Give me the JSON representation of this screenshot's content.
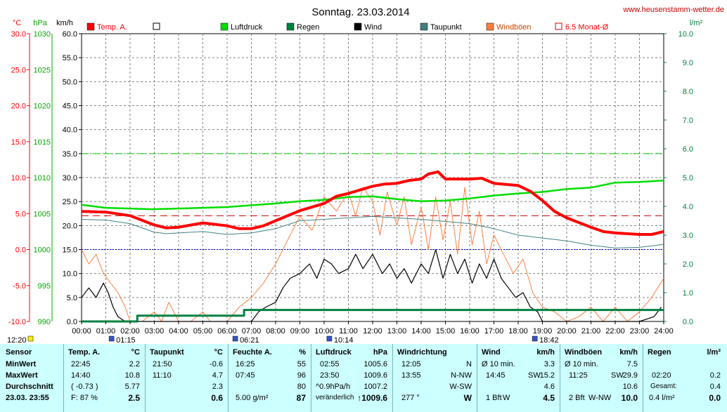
{
  "header": {
    "title": "Sonntag. 23.03.2014",
    "site": "www.heusenstamm-wetter.de",
    "unit_c": "°C",
    "unit_hpa": "hPa",
    "unit_kmh": "km/h",
    "unit_lm2": "l/m²"
  },
  "legend": [
    {
      "label": "Temp. A.",
      "color": "#ff0000",
      "style": "filled"
    },
    {
      "label": "",
      "color": "#000000",
      "style": "outline"
    },
    {
      "label": "Luftdruck",
      "color": "#00dd00",
      "style": "filled"
    },
    {
      "label": "Regen",
      "color": "#008040",
      "style": "filled"
    },
    {
      "label": "Wind",
      "color": "#000000",
      "style": "filled"
    },
    {
      "label": "Taupunkt",
      "color": "#408080",
      "style": "filled"
    },
    {
      "label": "Windböen",
      "color": "#ff8040",
      "style": "filled"
    },
    {
      "label": "6.5 Monat-Ø",
      "color": "#cc0000",
      "style": "outline"
    }
  ],
  "time_markers": [
    {
      "label": "12:20",
      "time": 0.33
    },
    {
      "label": "01:15",
      "time": 1.25
    },
    {
      "label": "06:21",
      "time": 6.35
    },
    {
      "label": "10:14",
      "time": 10.23
    },
    {
      "label": "18:42",
      "time": 18.7
    }
  ],
  "chart_data": {
    "type": "line",
    "x_unit": "hour",
    "xlim": [
      0,
      24
    ],
    "x_ticks": [
      "00:00",
      "01:00",
      "02:00",
      "03:00",
      "04:00",
      "05:00",
      "06:00",
      "07:00",
      "08:00",
      "09:00",
      "10:00",
      "11:00",
      "12:00",
      "13:00",
      "14:00",
      "15:00",
      "16:00",
      "17:00",
      "18:00",
      "19:00",
      "20:00",
      "21:00",
      "22:00",
      "23:00",
      "24:00"
    ],
    "axes": {
      "temp": {
        "unit": "°C",
        "min": -10,
        "max": 30,
        "ticks": [
          "30.0",
          "25.0",
          "20.0",
          "15.0",
          "10.0",
          "5.0",
          "0.0",
          "-5.0",
          "-10.0"
        ]
      },
      "pressure": {
        "unit": "hPa",
        "min": 990,
        "max": 1030,
        "ticks": [
          "1030",
          "1025",
          "1020",
          "1015",
          "1010",
          "1005",
          "1000",
          "995",
          "990"
        ]
      },
      "wind": {
        "unit": "km/h",
        "min": 0,
        "max": 60,
        "ticks": [
          "60.0",
          "55.0",
          "50.0",
          "45.0",
          "40.0",
          "35.0",
          "30.0",
          "25.0",
          "20.0",
          "15.0",
          "10.0",
          "5.0",
          "0.0"
        ]
      },
      "rain": {
        "unit": "l/m²",
        "min": 0,
        "max": 10,
        "ticks": [
          "10.0",
          "9.0",
          "8.0",
          "7.0",
          "6.0",
          "5.0",
          "4.0",
          "3.0",
          "2.0",
          "1.0",
          "0.0"
        ]
      }
    },
    "reference_lines": {
      "temp_6_5_month_avg": 4.7,
      "temp_zero": 0.0,
      "wind_green_dash": 35.0
    },
    "series": [
      {
        "name": "Temp. A.",
        "axis": "temp",
        "color": "#ff0000",
        "points": [
          [
            0,
            5.3
          ],
          [
            1,
            5.2
          ],
          [
            2,
            4.7
          ],
          [
            3,
            3.4
          ],
          [
            3.5,
            3.0
          ],
          [
            4,
            3.1
          ],
          [
            5,
            3.7
          ],
          [
            6,
            3.3
          ],
          [
            6.5,
            2.9
          ],
          [
            7,
            2.9
          ],
          [
            7.5,
            3.3
          ],
          [
            8,
            4.0
          ],
          [
            9,
            5.4
          ],
          [
            10,
            6.4
          ],
          [
            10.5,
            7.4
          ],
          [
            11,
            7.8
          ],
          [
            11.5,
            8.3
          ],
          [
            12,
            8.8
          ],
          [
            12.5,
            9.1
          ],
          [
            13,
            9.2
          ],
          [
            13.5,
            9.6
          ],
          [
            14,
            9.8
          ],
          [
            14.3,
            10.5
          ],
          [
            14.7,
            10.8
          ],
          [
            15,
            9.8
          ],
          [
            16,
            9.8
          ],
          [
            16.5,
            9.9
          ],
          [
            17,
            9.2
          ],
          [
            18,
            8.9
          ],
          [
            18.5,
            8.1
          ],
          [
            19,
            6.8
          ],
          [
            19.5,
            5.3
          ],
          [
            20,
            4.4
          ],
          [
            21,
            3.1
          ],
          [
            21.5,
            2.5
          ],
          [
            22,
            2.3
          ],
          [
            23,
            2.1
          ],
          [
            23.5,
            2.1
          ],
          [
            24,
            2.5
          ]
        ]
      },
      {
        "name": "Taupunkt",
        "axis": "temp",
        "color": "#408080",
        "points": [
          [
            0,
            4.2
          ],
          [
            1,
            4.1
          ],
          [
            2,
            3.6
          ],
          [
            3,
            2.4
          ],
          [
            3.5,
            2.2
          ],
          [
            4,
            2.3
          ],
          [
            5,
            2.5
          ],
          [
            6,
            2.1
          ],
          [
            6.5,
            2.2
          ],
          [
            7,
            2.3
          ],
          [
            8,
            2.9
          ],
          [
            9,
            4.0
          ],
          [
            10,
            4.2
          ],
          [
            11,
            4.4
          ],
          [
            12,
            4.6
          ],
          [
            13,
            4.4
          ],
          [
            14,
            4.2
          ],
          [
            15,
            3.9
          ],
          [
            16,
            3.6
          ],
          [
            17,
            2.9
          ],
          [
            18,
            2.0
          ],
          [
            19,
            1.6
          ],
          [
            20,
            1.2
          ],
          [
            21,
            0.6
          ],
          [
            22,
            0.2
          ],
          [
            23,
            0.3
          ],
          [
            24,
            0.7
          ]
        ]
      },
      {
        "name": "Luftdruck",
        "axis": "pressure",
        "color": "#00dd00",
        "points": [
          [
            0,
            1006.2
          ],
          [
            1,
            1005.8
          ],
          [
            2,
            1005.7
          ],
          [
            2.9,
            1005.6
          ],
          [
            4,
            1005.7
          ],
          [
            6,
            1005.9
          ],
          [
            8,
            1006.4
          ],
          [
            9,
            1006.7
          ],
          [
            10,
            1006.9
          ],
          [
            11,
            1007.3
          ],
          [
            12,
            1007.4
          ],
          [
            13,
            1007.0
          ],
          [
            14,
            1006.7
          ],
          [
            15,
            1006.8
          ],
          [
            16,
            1007.1
          ],
          [
            17,
            1007.5
          ],
          [
            18,
            1007.8
          ],
          [
            19,
            1008.0
          ],
          [
            20,
            1008.4
          ],
          [
            21,
            1008.6
          ],
          [
            22,
            1009.3
          ],
          [
            23,
            1009.4
          ],
          [
            24,
            1009.6
          ]
        ]
      },
      {
        "name": "Wind",
        "axis": "wind",
        "color": "#000000",
        "points": [
          [
            0,
            5
          ],
          [
            0.3,
            7
          ],
          [
            0.6,
            5
          ],
          [
            0.9,
            8
          ],
          [
            1.1,
            6
          ],
          [
            1.3,
            3
          ],
          [
            1.5,
            1
          ],
          [
            1.8,
            0
          ],
          [
            2,
            0
          ],
          [
            3,
            0
          ],
          [
            4,
            0
          ],
          [
            5,
            0
          ],
          [
            6,
            0
          ],
          [
            7,
            0
          ],
          [
            7.3,
            2
          ],
          [
            7.6,
            3
          ],
          [
            8,
            4
          ],
          [
            8.3,
            7
          ],
          [
            8.6,
            9
          ],
          [
            9,
            10
          ],
          [
            9.4,
            12
          ],
          [
            9.7,
            9
          ],
          [
            10,
            13
          ],
          [
            10.3,
            12
          ],
          [
            10.6,
            10
          ],
          [
            11,
            11
          ],
          [
            11.3,
            14
          ],
          [
            11.6,
            11
          ],
          [
            12,
            14
          ],
          [
            12.4,
            10
          ],
          [
            12.7,
            12
          ],
          [
            13,
            9
          ],
          [
            13.3,
            11
          ],
          [
            13.6,
            8
          ],
          [
            14,
            12
          ],
          [
            14.3,
            10
          ],
          [
            14.6,
            15
          ],
          [
            14.9,
            9
          ],
          [
            15.2,
            14
          ],
          [
            15.5,
            10
          ],
          [
            15.8,
            13
          ],
          [
            16.1,
            8
          ],
          [
            16.4,
            12
          ],
          [
            16.7,
            9
          ],
          [
            17,
            13
          ],
          [
            17.3,
            9
          ],
          [
            17.6,
            7
          ],
          [
            17.9,
            5
          ],
          [
            18.2,
            6
          ],
          [
            18.5,
            3
          ],
          [
            18.8,
            2
          ],
          [
            19,
            0
          ],
          [
            20,
            0
          ],
          [
            21,
            0
          ],
          [
            22,
            0
          ],
          [
            23,
            0
          ],
          [
            23.6,
            1
          ],
          [
            23.9,
            3
          ]
        ]
      },
      {
        "name": "Windböen",
        "axis": "wind",
        "color": "#ff8040",
        "points": [
          [
            0,
            15
          ],
          [
            0.3,
            12
          ],
          [
            0.6,
            14
          ],
          [
            0.9,
            10
          ],
          [
            1.2,
            8
          ],
          [
            1.5,
            6
          ],
          [
            1.8,
            3
          ],
          [
            2,
            0
          ],
          [
            2.5,
            0
          ],
          [
            3,
            2
          ],
          [
            3.3,
            0
          ],
          [
            3.6,
            4
          ],
          [
            4,
            0
          ],
          [
            4.5,
            0
          ],
          [
            5,
            2
          ],
          [
            5.3,
            0
          ],
          [
            6,
            0
          ],
          [
            6.5,
            3
          ],
          [
            7,
            5
          ],
          [
            7.5,
            8
          ],
          [
            8,
            12
          ],
          [
            8.5,
            17
          ],
          [
            9,
            22
          ],
          [
            9.5,
            19
          ],
          [
            10,
            26
          ],
          [
            10.5,
            23
          ],
          [
            11,
            27
          ],
          [
            11.3,
            22
          ],
          [
            11.6,
            28
          ],
          [
            12,
            25
          ],
          [
            12.3,
            18
          ],
          [
            12.6,
            27
          ],
          [
            13,
            20
          ],
          [
            13.3,
            26
          ],
          [
            13.6,
            16
          ],
          [
            14,
            24
          ],
          [
            14.3,
            15
          ],
          [
            14.6,
            26
          ],
          [
            14.9,
            17
          ],
          [
            15.2,
            25
          ],
          [
            15.5,
            14
          ],
          [
            15.8,
            28
          ],
          [
            16.1,
            16
          ],
          [
            16.4,
            23
          ],
          [
            16.7,
            12
          ],
          [
            17,
            18
          ],
          [
            17.4,
            14
          ],
          [
            17.8,
            10
          ],
          [
            18.2,
            13
          ],
          [
            18.6,
            6
          ],
          [
            19,
            3
          ],
          [
            19.5,
            2
          ],
          [
            20,
            0
          ],
          [
            20.5,
            1
          ],
          [
            21,
            3
          ],
          [
            21.5,
            0
          ],
          [
            22,
            3
          ],
          [
            22.5,
            0
          ],
          [
            23,
            2
          ],
          [
            23.5,
            5
          ],
          [
            24,
            9
          ]
        ]
      },
      {
        "name": "Regen",
        "axis": "rain",
        "color": "#008040",
        "points": [
          [
            0,
            0
          ],
          [
            2.3,
            0
          ],
          [
            2.3,
            0.2
          ],
          [
            6.7,
            0.2
          ],
          [
            6.7,
            0.4
          ],
          [
            24,
            0.4
          ]
        ]
      }
    ]
  },
  "table": {
    "sensor": {
      "title": "Sensor",
      "rows": [
        "MinWert",
        "MaxWert",
        "Durchschnitt",
        "23.03. 23:55"
      ]
    },
    "temp": {
      "title": "Temp. A.",
      "unit": "°C",
      "rows": [
        [
          "22:45",
          "2.2"
        ],
        [
          "14:40",
          "10.8"
        ],
        [
          "( -0.73 )",
          "5.77"
        ],
        [
          "F: 87 %",
          "2.5"
        ]
      ]
    },
    "taupunkt": {
      "title": "Taupunkt",
      "unit": "°C",
      "rows": [
        [
          "21:50",
          "-0.6"
        ],
        [
          "11:10",
          "4.7"
        ],
        [
          "",
          "2.3"
        ],
        [
          "",
          "0.6"
        ]
      ]
    },
    "feuchte": {
      "title": "Feuchte A.",
      "unit": "%",
      "rows": [
        [
          "16:25",
          "55"
        ],
        [
          "07:45",
          "96"
        ],
        [
          "",
          "80"
        ],
        [
          "5.00 g/m²",
          "87"
        ]
      ]
    },
    "luftdruck": {
      "title": "Luftdruck",
      "unit": "hPa",
      "rows": [
        [
          "02:55",
          "1005.6"
        ],
        [
          "23:50",
          "1009.6"
        ],
        [
          "^0.9hPa/h",
          "1007.2"
        ],
        [
          "veränderlich",
          "1009.6"
        ]
      ],
      "arrow": "↑"
    },
    "windrichtung": {
      "title": "Windrichtung",
      "rows": [
        [
          "12:05",
          "N"
        ],
        [
          "13:55",
          "N-NW"
        ],
        [
          "",
          "W-SW"
        ],
        [
          "277 °",
          "W"
        ]
      ]
    },
    "wind": {
      "title": "Wind",
      "unit": "km/h",
      "rows": [
        [
          "Ø 10 min.",
          "",
          "3.3"
        ],
        [
          "14:45",
          "SW",
          "15.2"
        ],
        [
          "",
          "",
          "4.6"
        ],
        [
          "1 Bft",
          "W",
          "4.5"
        ]
      ]
    },
    "windboeen": {
      "title": "Windböen",
      "unit": "km/h",
      "rows": [
        [
          "Ø 10 min.",
          "",
          "7.5"
        ],
        [
          "11:25",
          "SW",
          "29.9"
        ],
        [
          "",
          "",
          "10.6"
        ],
        [
          "2 Bft",
          "W-NW",
          "10.0"
        ]
      ]
    },
    "regen": {
      "title": "Regen",
      "unit": "l/m²",
      "rows": [
        [
          "",
          ""
        ],
        [
          "02:20",
          "0.2"
        ],
        [
          "Gesamt:",
          "0.4"
        ],
        [
          "0.4 l/m²",
          "0.0"
        ]
      ]
    }
  }
}
